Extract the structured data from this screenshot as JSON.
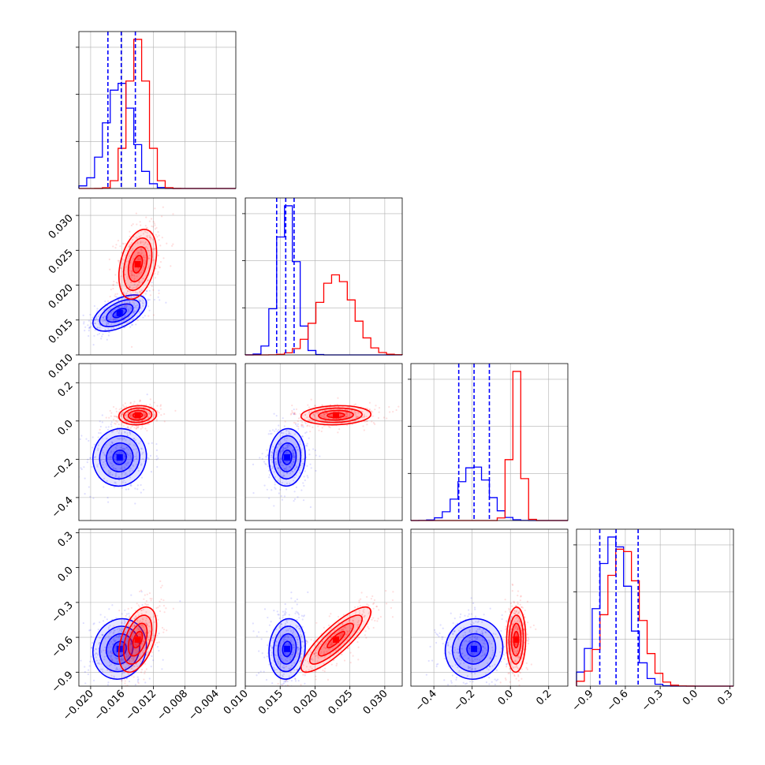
{
  "colors": {
    "series_a": "#0000ff",
    "series_b": "#ff0000",
    "grid": "#b0b0b0",
    "frame": "#000000"
  },
  "chart_data": {
    "type": "scatter",
    "kind": "corner plot (2D density contours + 1D histograms)",
    "grid": true,
    "series": [
      {
        "color": "#0000ff",
        "mean": [
          -0.0163,
          0.016,
          -0.19,
          -0.7
        ],
        "sd": [
          0.0017,
          0.0013,
          0.075,
          0.13
        ],
        "quantile_lines": [
          [
            -0.0178,
            -0.0161,
            -0.0143
          ],
          [
            0.0145,
            0.0158,
            0.017
          ],
          [
            -0.27,
            -0.19,
            -0.11
          ],
          [
            -0.82,
            -0.68,
            -0.49
          ]
        ]
      },
      {
        "color": "#ff0000",
        "mean": [
          -0.014,
          0.023,
          0.03,
          -0.62
        ],
        "sd": [
          0.0012,
          0.0025,
          0.025,
          0.14
        ]
      }
    ],
    "axes": [
      {
        "range": [
          -0.0215,
          -0.0015
        ],
        "ticks": [
          "−0.020",
          "−0.016",
          "−0.012",
          "−0.008",
          "−0.004"
        ],
        "tick_values": [
          -0.02,
          -0.016,
          -0.012,
          -0.008,
          -0.004
        ]
      },
      {
        "range": [
          0.01,
          0.0325
        ],
        "ticks": [
          "0.010",
          "0.015",
          "0.020",
          "0.025",
          "0.030"
        ],
        "tick_values": [
          0.01,
          0.015,
          0.02,
          0.025,
          0.03
        ]
      },
      {
        "range": [
          -0.52,
          0.3
        ],
        "ticks": [
          "−0.4",
          "−0.2",
          "0.0",
          "0.2"
        ],
        "tick_values": [
          -0.4,
          -0.2,
          0.0,
          0.2
        ]
      },
      {
        "range": [
          -1.02,
          0.33
        ],
        "ticks": [
          "−0.9",
          "−0.6",
          "−0.3",
          "0.0",
          "0.3"
        ],
        "tick_values": [
          -0.9,
          -0.6,
          -0.3,
          0.0,
          0.3
        ]
      }
    ]
  }
}
